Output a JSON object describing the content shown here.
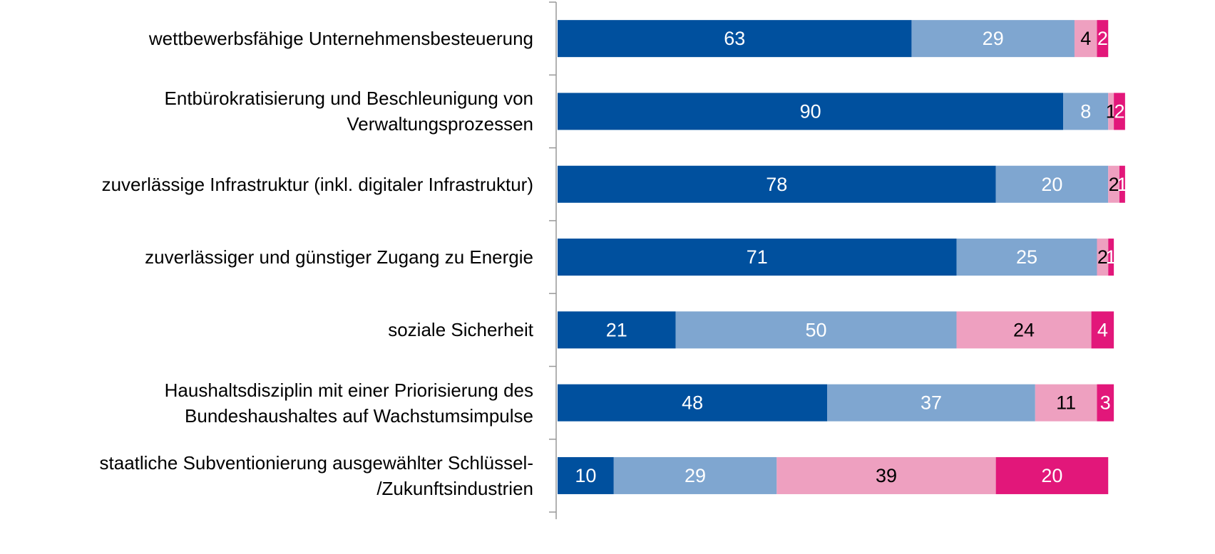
{
  "chart_data": {
    "type": "stacked-bar-horizontal",
    "categories": [
      "wettbewerbsfähige Unternehmensbesteuerung",
      "Entbürokratisierung und Beschleunigung von\nVerwaltungsprozessen",
      "zuverlässige Infrastruktur (inkl. digitaler Infrastruktur)",
      "zuverlässiger und günstiger Zugang zu Energie",
      "soziale Sicherheit",
      "Haushaltsdisziplin mit einer Priorisierung des\nBundeshaushaltes auf Wachstumsimpulse",
      "staatliche Subventionierung ausgewählter Schlüssel-\n/Zukunftsindustrien"
    ],
    "series": [
      {
        "color": "#00509e",
        "values": [
          63,
          90,
          78,
          71,
          21,
          48,
          10
        ]
      },
      {
        "color": "#7fa6d0",
        "values": [
          29,
          8,
          20,
          25,
          50,
          37,
          29
        ]
      },
      {
        "color": "#eea0c0",
        "values": [
          4,
          1,
          2,
          2,
          24,
          11,
          39
        ]
      },
      {
        "color": "#e2177a",
        "values": [
          2,
          2,
          1,
          1,
          4,
          3,
          20
        ]
      }
    ],
    "xlim": [
      0,
      100
    ]
  }
}
